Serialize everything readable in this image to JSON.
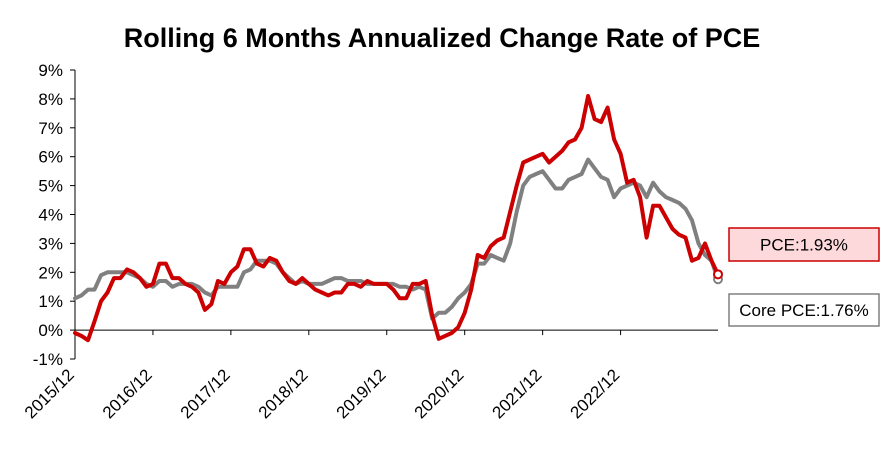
{
  "chart_data": {
    "type": "line",
    "title": "Rolling 6 Months Annualized Change Rate of PCE",
    "xlabel": "",
    "ylabel": "",
    "ylim": [
      -1,
      9
    ],
    "yticks": [
      -1,
      0,
      1,
      2,
      3,
      4,
      5,
      6,
      7,
      8,
      9
    ],
    "ytick_labels": [
      "-1%",
      "0%",
      "1%",
      "2%",
      "3%",
      "4%",
      "5%",
      "6%",
      "7%",
      "8%",
      "9%"
    ],
    "x_tick_labels": [
      "2015/12",
      "2016/12",
      "2017/12",
      "2018/12",
      "2019/12",
      "2020/12",
      "2021/12",
      "2022/12"
    ],
    "x_start": "2015/12",
    "grid": false,
    "series": [
      {
        "name": "PCE",
        "color": "#cc0000",
        "end_label": "PCE:1.93%",
        "end_value": 1.93,
        "values": [
          -0.1,
          -0.2,
          -0.35,
          0.3,
          1.0,
          1.3,
          1.8,
          1.8,
          2.1,
          2.0,
          1.8,
          1.5,
          1.6,
          2.3,
          2.3,
          1.8,
          1.8,
          1.6,
          1.5,
          1.3,
          0.7,
          0.9,
          1.7,
          1.6,
          2.0,
          2.2,
          2.8,
          2.8,
          2.3,
          2.2,
          2.5,
          2.4,
          2.0,
          1.7,
          1.6,
          1.8,
          1.6,
          1.4,
          1.3,
          1.2,
          1.3,
          1.3,
          1.6,
          1.6,
          1.5,
          1.7,
          1.6,
          1.6,
          1.6,
          1.4,
          1.1,
          1.1,
          1.6,
          1.6,
          1.7,
          0.5,
          -0.3,
          -0.2,
          -0.1,
          0.1,
          0.6,
          1.4,
          2.6,
          2.5,
          2.9,
          3.1,
          3.2,
          4.1,
          5.0,
          5.8,
          5.9,
          6.0,
          6.1,
          5.8,
          6.0,
          6.2,
          6.5,
          6.6,
          7.0,
          8.1,
          7.3,
          7.2,
          7.7,
          6.6,
          6.1,
          5.1,
          5.2,
          4.6,
          3.2,
          4.3,
          4.3,
          3.9,
          3.5,
          3.3,
          3.2,
          2.4,
          2.5,
          3.0,
          2.4,
          1.93
        ]
      },
      {
        "name": "Core PCE",
        "color": "#808080",
        "end_label": "Core PCE:1.76%",
        "end_value": 1.76,
        "values": [
          1.1,
          1.2,
          1.4,
          1.4,
          1.9,
          2.0,
          2.0,
          2.0,
          2.0,
          1.9,
          1.8,
          1.6,
          1.5,
          1.7,
          1.7,
          1.5,
          1.6,
          1.6,
          1.6,
          1.5,
          1.3,
          1.2,
          1.5,
          1.5,
          1.5,
          1.5,
          2.0,
          2.1,
          2.4,
          2.4,
          2.4,
          2.3,
          2.0,
          1.8,
          1.6,
          1.7,
          1.6,
          1.6,
          1.6,
          1.7,
          1.8,
          1.8,
          1.7,
          1.7,
          1.7,
          1.6,
          1.6,
          1.6,
          1.6,
          1.6,
          1.5,
          1.5,
          1.4,
          1.5,
          1.4,
          0.4,
          0.6,
          0.6,
          0.8,
          1.1,
          1.3,
          1.6,
          2.3,
          2.3,
          2.6,
          2.5,
          2.4,
          3.0,
          4.1,
          5.0,
          5.3,
          5.4,
          5.5,
          5.2,
          4.9,
          4.9,
          5.2,
          5.3,
          5.4,
          5.9,
          5.6,
          5.3,
          5.2,
          4.6,
          4.9,
          5.0,
          5.1,
          5.0,
          4.6,
          5.1,
          4.8,
          4.6,
          4.5,
          4.4,
          4.2,
          3.8,
          3.0,
          2.6,
          2.4,
          1.76
        ]
      }
    ]
  }
}
